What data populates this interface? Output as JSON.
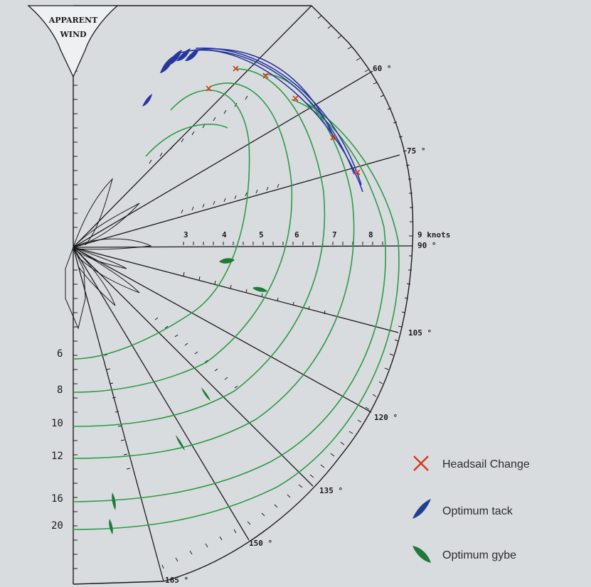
{
  "banner": {
    "line1": "APPARENT",
    "line2": "WIND"
  },
  "angle_labels": [
    "60 °",
    "75 °",
    "90 °",
    "105 °",
    "120 °",
    "135 °",
    "150 °",
    "165 °"
  ],
  "speed_scale": {
    "ticks": [
      "3",
      "4",
      "5",
      "6",
      "7",
      "8"
    ],
    "last": "9 knots"
  },
  "true_wind_labels": [
    "6",
    "8",
    "10",
    "12",
    "16",
    "20"
  ],
  "legend": [
    {
      "label": "Headsail Change",
      "color": "#d23a1c",
      "icon": "x-mark-icon"
    },
    {
      "label": "Optimum tack",
      "color": "#1f3f8f",
      "icon": "blue-sail-icon"
    },
    {
      "label": "Optimum gybe",
      "color": "#1f7a3a",
      "icon": "green-sail-icon"
    }
  ],
  "colors": {
    "curve_green": "#2e9a47",
    "curve_blue": "#27379c",
    "marker_red": "#d23a1c",
    "ink": "#1a1a1a"
  }
}
